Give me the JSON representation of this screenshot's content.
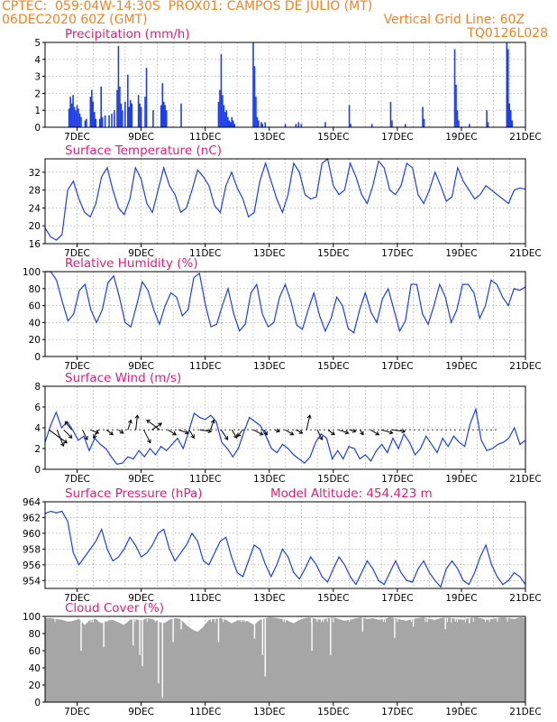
{
  "header": {
    "left_line1": "CPTEC:  059:04W-14:30S  PROX01: CAMPOS DE JULIO (MT)",
    "left_line2": "06DEC2020 60Z (GMT)",
    "right_line2": "Vertical Grid Line: 60Z",
    "right_line3": "TQ0126L028"
  },
  "colors": {
    "header": "#f58220",
    "panel_title": "#e0207c",
    "series": "#1f3fe6",
    "cloud": "#a6a6a6",
    "grid": "#999999"
  },
  "x_ticks": [
    "7DEC",
    "9DEC",
    "11DEC",
    "13DEC",
    "15DEC",
    "17DEC",
    "19DEC",
    "21DEC"
  ],
  "chart_data": [
    {
      "id": "precip",
      "type": "bar",
      "title": "Precipitation (mm/h)",
      "ylim": [
        0,
        5
      ],
      "yticks": [
        0,
        1,
        2,
        3,
        4,
        5
      ],
      "xlim_hours": [
        0,
        360
      ],
      "events": [
        [
          18,
          1.1
        ],
        [
          19,
          1.8
        ],
        [
          20,
          1.4
        ],
        [
          21,
          1.9
        ],
        [
          22,
          1.2
        ],
        [
          23,
          1.0
        ],
        [
          24,
          1.3
        ],
        [
          25,
          1.1
        ],
        [
          26,
          0.8
        ],
        [
          27,
          0.6
        ],
        [
          30,
          0.4
        ],
        [
          31,
          0.5
        ],
        [
          34,
          1.8
        ],
        [
          35,
          2.2
        ],
        [
          36,
          1.5
        ],
        [
          37,
          0.9
        ],
        [
          38,
          0.5
        ],
        [
          41,
          0.5
        ],
        [
          42,
          2.4
        ],
        [
          43,
          0.6
        ],
        [
          45,
          0.7
        ],
        [
          48,
          0.7
        ],
        [
          50,
          0.8
        ],
        [
          52,
          1.0
        ],
        [
          54,
          2.2
        ],
        [
          55,
          4.8
        ],
        [
          56,
          2.4
        ],
        [
          57,
          1.4
        ],
        [
          58,
          1.0
        ],
        [
          60,
          1.5
        ],
        [
          62,
          3.1
        ],
        [
          63,
          1.2
        ],
        [
          64,
          1.6
        ],
        [
          65,
          1.4
        ],
        [
          70,
          1.9
        ],
        [
          71,
          1.4
        ],
        [
          72,
          1.2
        ],
        [
          75,
          1.8
        ],
        [
          76,
          3.5
        ],
        [
          81,
          1.0
        ],
        [
          87,
          1.3
        ],
        [
          88,
          2.6
        ],
        [
          89,
          1.5
        ],
        [
          90,
          1.3
        ],
        [
          91,
          1.0
        ],
        [
          102,
          1.4
        ],
        [
          130,
          1.5
        ],
        [
          131,
          2.2
        ],
        [
          132,
          4.3
        ],
        [
          133,
          1.9
        ],
        [
          134,
          1.3
        ],
        [
          135,
          0.9
        ],
        [
          136,
          1.0
        ],
        [
          137,
          0.6
        ],
        [
          138,
          0.4
        ],
        [
          139,
          0.3
        ],
        [
          140,
          0.6
        ],
        [
          141,
          0.4
        ],
        [
          142,
          0.2
        ],
        [
          156,
          5.0
        ],
        [
          157,
          3.6
        ],
        [
          158,
          1.8
        ],
        [
          159,
          0.6
        ],
        [
          160,
          0.4
        ],
        [
          162,
          0.3
        ],
        [
          163,
          0.2
        ],
        [
          165,
          0.3
        ],
        [
          180,
          0.2
        ],
        [
          188,
          0.2
        ],
        [
          190,
          0.3
        ],
        [
          192,
          0.2
        ],
        [
          210,
          0.3
        ],
        [
          228,
          1.3
        ],
        [
          229,
          0.2
        ],
        [
          245,
          0.2
        ],
        [
          259,
          1.5
        ],
        [
          260,
          0.4
        ],
        [
          270,
          0.2
        ],
        [
          283,
          1.2
        ],
        [
          284,
          0.5
        ],
        [
          307,
          4.6
        ],
        [
          308,
          2.5
        ],
        [
          309,
          1.0
        ],
        [
          310,
          0.4
        ],
        [
          318,
          0.2
        ],
        [
          331,
          1.0
        ],
        [
          332,
          0.3
        ],
        [
          346,
          5.0
        ],
        [
          347,
          4.6
        ],
        [
          348,
          1.4
        ],
        [
          349,
          1.0
        ],
        [
          350,
          0.4
        ]
      ]
    },
    {
      "id": "temp",
      "type": "line",
      "title": "Surface Temperature (nC)",
      "ylim": [
        16,
        35
      ],
      "yticks": [
        16,
        20,
        24,
        28,
        32
      ],
      "xlim_hours": [
        0,
        360
      ],
      "values": [
        19.5,
        17.5,
        16.8,
        18,
        28,
        30,
        26,
        23,
        22,
        25,
        31,
        33,
        28,
        24,
        22.5,
        26,
        33,
        30.5,
        25,
        23,
        28,
        33,
        29,
        27,
        23,
        24,
        28,
        32.5,
        31,
        29,
        24.5,
        23,
        29,
        32,
        28.5,
        26,
        22,
        23,
        30,
        34,
        30,
        26,
        23,
        27,
        34,
        32,
        27,
        26,
        26.5,
        34,
        35,
        29,
        27,
        28,
        34,
        31,
        27,
        25,
        29,
        34.5,
        33,
        28,
        27,
        29,
        34,
        33,
        27,
        25,
        28,
        32,
        29,
        25.5,
        26.5,
        33,
        30,
        28,
        26,
        27,
        29,
        28,
        27,
        26,
        25,
        28,
        28.5,
        28.2
      ]
    },
    {
      "id": "rh",
      "type": "line",
      "title": "Relative Humidity (%)",
      "ylim": [
        0,
        100
      ],
      "yticks": [
        0,
        20,
        40,
        60,
        80,
        100
      ],
      "xlim_hours": [
        0,
        360
      ],
      "values": [
        100,
        100,
        90,
        65,
        42,
        50,
        78,
        85,
        55,
        40,
        55,
        87,
        95,
        70,
        40,
        35,
        60,
        88,
        78,
        55,
        38,
        60,
        75,
        70,
        48,
        55,
        93,
        98,
        62,
        35,
        38,
        60,
        80,
        50,
        30,
        38,
        75,
        85,
        50,
        35,
        40,
        70,
        85,
        65,
        37,
        32,
        55,
        75,
        48,
        30,
        45,
        70,
        60,
        33,
        28,
        55,
        75,
        52,
        40,
        68,
        80,
        55,
        30,
        42,
        85,
        85,
        50,
        38,
        60,
        85,
        70,
        40,
        55,
        85,
        85,
        75,
        45,
        60,
        90,
        85,
        70,
        60,
        80,
        78,
        82
      ]
    },
    {
      "id": "wind",
      "type": "line",
      "title": "Surface Wind (m/s)",
      "ylim": [
        0,
        8
      ],
      "yticks": [
        0,
        2,
        4,
        6,
        8
      ],
      "xlim_hours": [
        0,
        360
      ],
      "values": [
        2.6,
        4.2,
        5.5,
        4.0,
        4.6,
        3.8,
        2.8,
        3.2,
        1.8,
        3.0,
        2.4,
        2.0,
        1.2,
        0.5,
        0.6,
        1.2,
        1.0,
        1.8,
        1.2,
        2.0,
        1.4,
        2.2,
        1.8,
        2.4,
        3.0,
        2.0,
        3.6,
        5.4,
        5.0,
        4.8,
        5.2,
        4.6,
        2.6,
        2.0,
        1.2,
        2.0,
        3.6,
        5.0,
        4.6,
        4.2,
        3.2,
        2.0,
        1.6,
        2.4,
        2.0,
        1.4,
        1.0,
        0.6,
        1.2,
        2.6,
        3.4,
        3.0,
        1.0,
        1.8,
        1.0,
        2.2,
        2.0,
        1.0,
        1.4,
        0.8,
        1.8,
        2.4,
        1.6,
        3.0,
        2.0,
        3.4,
        2.6,
        1.4,
        2.0,
        3.2,
        2.4,
        1.6,
        3.0,
        2.2,
        3.2,
        2.6,
        2.2,
        4.4,
        5.8,
        2.8,
        1.8,
        2.0,
        2.4,
        2.6,
        3.0,
        4.0,
        2.4,
        2.8
      ],
      "arrows": [
        [
          3,
          1.1,
          0.8
        ],
        [
          9,
          0.4,
          1.0
        ],
        [
          14,
          0.5,
          0.5
        ],
        [
          20,
          -0.4,
          -0.5
        ],
        [
          28,
          0.3,
          0.6
        ],
        [
          34,
          0.5,
          0.2
        ],
        [
          40,
          -0.3,
          0.5
        ],
        [
          46,
          0.4,
          0.3
        ],
        [
          55,
          0.3,
          0.2
        ],
        [
          62,
          0.2,
          -0.6
        ],
        [
          68,
          0.1,
          -0.9
        ],
        [
          74,
          0.4,
          0.8
        ],
        [
          80,
          0.6,
          -0.4
        ],
        [
          86,
          -0.8,
          -0.6
        ],
        [
          92,
          0.5,
          0.3
        ],
        [
          100,
          0.6,
          0.2
        ],
        [
          108,
          0.3,
          0.5
        ],
        [
          116,
          0.7,
          0.1
        ],
        [
          124,
          0.2,
          -0.6
        ],
        [
          132,
          0.4,
          0.6
        ],
        [
          140,
          0.3,
          0.5
        ],
        [
          148,
          -0.3,
          0.4
        ],
        [
          156,
          0.6,
          0.3
        ],
        [
          164,
          0.2,
          0.3
        ],
        [
          172,
          0.3,
          0.1
        ],
        [
          180,
          0.5,
          0.3
        ],
        [
          188,
          0.4,
          0.2
        ],
        [
          196,
          0.2,
          -0.9
        ],
        [
          204,
          0.3,
          0.6
        ],
        [
          212,
          0.4,
          0.3
        ],
        [
          220,
          0.6,
          0.2
        ],
        [
          228,
          0.4,
          0.1
        ],
        [
          236,
          0.2,
          0.3
        ],
        [
          244,
          0.5,
          0.3
        ],
        [
          252,
          0.7,
          0.2
        ],
        [
          260,
          0.8,
          0.1
        ]
      ]
    },
    {
      "id": "pressure",
      "type": "line",
      "title": "Surface Pressure (hPa)",
      "ylim": [
        953,
        964
      ],
      "yticks": [
        954,
        956,
        958,
        960,
        962,
        964
      ],
      "xlim_hours": [
        0,
        360
      ],
      "values": [
        962.5,
        962.8,
        962.6,
        962.8,
        961.5,
        957.5,
        956,
        957,
        958,
        959,
        960.5,
        958,
        956.5,
        957,
        958,
        959.5,
        958.5,
        957,
        957.5,
        958.5,
        960,
        960.5,
        958,
        956.5,
        957.5,
        958.5,
        960,
        959,
        956.5,
        956,
        957.5,
        959,
        959.5,
        957,
        955,
        954.5,
        956.5,
        958.5,
        958,
        956,
        954.5,
        956,
        958,
        957,
        955,
        954.2,
        955.5,
        957,
        956,
        954.5,
        953.8,
        955.5,
        957,
        956,
        954.5,
        953.5,
        955,
        956.5,
        955.5,
        954,
        953.5,
        955,
        956.5,
        955,
        954,
        953.8,
        955.5,
        956.5,
        955,
        954,
        953.2,
        955.5,
        956.5,
        955.5,
        954,
        953.5,
        955,
        957,
        958.5,
        956,
        954.5,
        953.5,
        954,
        955,
        954.5,
        953.5
      ],
      "annotation": "Model Altitude: 454.423 m"
    },
    {
      "id": "cloud",
      "type": "area",
      "title": "Cloud Cover (%)",
      "ylim": [
        0,
        100
      ],
      "yticks": [
        0,
        20,
        40,
        60,
        80,
        100
      ],
      "xlim_hours": [
        0,
        360
      ],
      "values": [
        98,
        98,
        97,
        96,
        94,
        95,
        97,
        90,
        96,
        97,
        92,
        95,
        96,
        93,
        90,
        96,
        97,
        95,
        98,
        97,
        94,
        92,
        96,
        98,
        97,
        90,
        85,
        82,
        88,
        96,
        97,
        98,
        96,
        92,
        95,
        96,
        94,
        90,
        96,
        98,
        99,
        98,
        97,
        95,
        92,
        96,
        98,
        99,
        97,
        96,
        98,
        99,
        97,
        95,
        96,
        98,
        99,
        97,
        98,
        96,
        97,
        99,
        98,
        96,
        95,
        97,
        98,
        99,
        97,
        96,
        98,
        99,
        98,
        97,
        96,
        98,
        99,
        98,
        96,
        97,
        98,
        99,
        98,
        97,
        99,
        98
      ],
      "dips": [
        [
          27,
          60
        ],
        [
          44,
          64
        ],
        [
          66,
          66
        ],
        [
          71,
          55
        ],
        [
          73,
          42
        ],
        [
          85,
          22
        ],
        [
          88,
          5
        ],
        [
          96,
          70
        ],
        [
          102,
          85
        ],
        [
          130,
          70
        ],
        [
          157,
          74
        ],
        [
          163,
          55
        ],
        [
          165,
          30
        ],
        [
          200,
          60
        ],
        [
          214,
          55
        ],
        [
          238,
          82
        ],
        [
          262,
          75
        ],
        [
          276,
          88
        ],
        [
          300,
          85
        ],
        [
          318,
          92
        ]
      ]
    }
  ]
}
